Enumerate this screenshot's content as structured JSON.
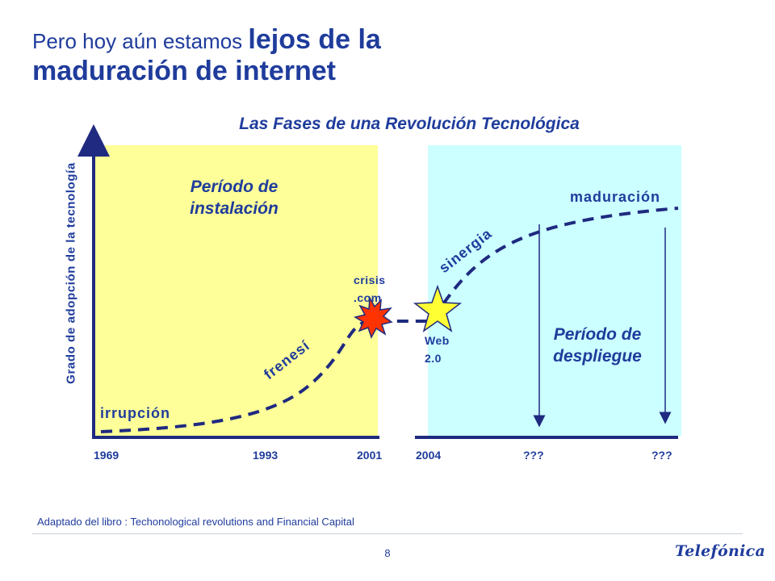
{
  "slide": {
    "title_part1": "Pero hoy aún estamos ",
    "title_part2": "lejos de la",
    "title_part3": "maduración de internet",
    "subtitle": "Las Fases de una Revolución Tecnológica",
    "footnote": "Adaptado del libro : Techonological revolutions and Financial Capital",
    "page_number": "8",
    "logo_text": "Telefónica"
  },
  "diagram": {
    "y_axis_label": "Grado de adopción de la tecnología",
    "period_installation": [
      "Período de",
      "instalación"
    ],
    "period_deployment": [
      "Período de",
      "despliegue"
    ],
    "phase_labels": {
      "irrupcion": "irrupción",
      "frenesi": "frenesí",
      "sinergia": "sinergia",
      "maduracion": "maduración"
    },
    "events": {
      "crisis_line1": "crisis",
      "crisis_line2": ".com",
      "web_line1": "Web",
      "web_line2": "2.0"
    },
    "x_ticks": [
      "1969",
      "1993",
      "2001",
      "2004",
      "???",
      "???"
    ],
    "colors": {
      "installation_bg": "#ffff99",
      "deployment_bg": "#ccffff",
      "text": "#1f3c9c",
      "curve": "#1f2a80",
      "explosion": "#ff3300",
      "star": "#ffff33"
    }
  }
}
